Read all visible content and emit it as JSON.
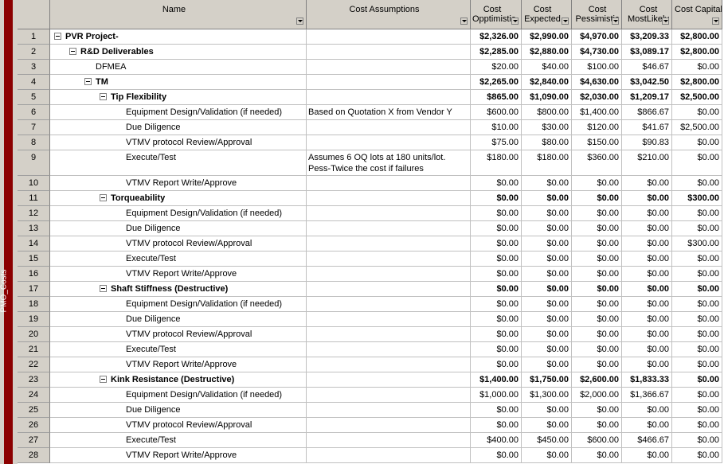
{
  "sidebar_label": "PMO_Costs",
  "columns": [
    "Name",
    "Cost Assumptions",
    "Cost Opptimistic",
    "Cost Expected",
    "Cost Pessimistic",
    "Cost MostLikely",
    "Cost Capital"
  ],
  "rows": [
    {
      "id": "1",
      "name": "PVR Project-",
      "costs": [
        "$2,326.00",
        "$2,990.00",
        "$4,970.00",
        "$3,209.33",
        "$2,800.00"
      ]
    },
    {
      "id": "2",
      "name": "R&D Deliverables",
      "costs": [
        "$2,285.00",
        "$2,880.00",
        "$4,730.00",
        "$3,089.17",
        "$2,800.00"
      ]
    },
    {
      "id": "3",
      "name": "DFMEA",
      "costs": [
        "$20.00",
        "$40.00",
        "$100.00",
        "$46.67",
        "$0.00"
      ]
    },
    {
      "id": "4",
      "name": "TM",
      "costs": [
        "$2,265.00",
        "$2,840.00",
        "$4,630.00",
        "$3,042.50",
        "$2,800.00"
      ]
    },
    {
      "id": "5",
      "name": "Tip Flexibility",
      "costs": [
        "$865.00",
        "$1,090.00",
        "$2,030.00",
        "$1,209.17",
        "$2,500.00"
      ]
    },
    {
      "id": "6",
      "name": "Equipment Design/Validation (if needed)",
      "assumption": "Based on Quotation X from Vendor Y",
      "costs": [
        "$600.00",
        "$800.00",
        "$1,400.00",
        "$866.67",
        "$0.00"
      ]
    },
    {
      "id": "7",
      "name": "Due Diligence",
      "costs": [
        "$10.00",
        "$30.00",
        "$120.00",
        "$41.67",
        "$2,500.00"
      ]
    },
    {
      "id": "8",
      "name": "VTMV protocol Review/Approval",
      "costs": [
        "$75.00",
        "$80.00",
        "$150.00",
        "$90.83",
        "$0.00"
      ]
    },
    {
      "id": "9",
      "name": "Execute/Test",
      "assumption": "Assumes 6 OQ lots at 180 units/lot. Pess-Twice the cost if failures",
      "costs": [
        "$180.00",
        "$180.00",
        "$360.00",
        "$210.00",
        "$0.00"
      ]
    },
    {
      "id": "10",
      "name": "VTMV Report Write/Approve",
      "costs": [
        "$0.00",
        "$0.00",
        "$0.00",
        "$0.00",
        "$0.00"
      ]
    },
    {
      "id": "11",
      "name": "Torqueability",
      "costs": [
        "$0.00",
        "$0.00",
        "$0.00",
        "$0.00",
        "$300.00"
      ]
    },
    {
      "id": "12",
      "name": "Equipment Design/Validation (if needed)",
      "costs": [
        "$0.00",
        "$0.00",
        "$0.00",
        "$0.00",
        "$0.00"
      ]
    },
    {
      "id": "13",
      "name": "Due Diligence",
      "costs": [
        "$0.00",
        "$0.00",
        "$0.00",
        "$0.00",
        "$0.00"
      ]
    },
    {
      "id": "14",
      "name": "VTMV protocol Review/Approval",
      "costs": [
        "$0.00",
        "$0.00",
        "$0.00",
        "$0.00",
        "$300.00"
      ]
    },
    {
      "id": "15",
      "name": "Execute/Test",
      "costs": [
        "$0.00",
        "$0.00",
        "$0.00",
        "$0.00",
        "$0.00"
      ]
    },
    {
      "id": "16",
      "name": "VTMV Report Write/Approve",
      "costs": [
        "$0.00",
        "$0.00",
        "$0.00",
        "$0.00",
        "$0.00"
      ]
    },
    {
      "id": "17",
      "name": "Shaft Stiffness (Destructive)",
      "costs": [
        "$0.00",
        "$0.00",
        "$0.00",
        "$0.00",
        "$0.00"
      ]
    },
    {
      "id": "18",
      "name": "Equipment Design/Validation (if needed)",
      "costs": [
        "$0.00",
        "$0.00",
        "$0.00",
        "$0.00",
        "$0.00"
      ]
    },
    {
      "id": "19",
      "name": "Due Diligence",
      "costs": [
        "$0.00",
        "$0.00",
        "$0.00",
        "$0.00",
        "$0.00"
      ]
    },
    {
      "id": "20",
      "name": "VTMV protocol Review/Approval",
      "costs": [
        "$0.00",
        "$0.00",
        "$0.00",
        "$0.00",
        "$0.00"
      ]
    },
    {
      "id": "21",
      "name": "Execute/Test",
      "costs": [
        "$0.00",
        "$0.00",
        "$0.00",
        "$0.00",
        "$0.00"
      ]
    },
    {
      "id": "22",
      "name": "VTMV Report Write/Approve",
      "costs": [
        "$0.00",
        "$0.00",
        "$0.00",
        "$0.00",
        "$0.00"
      ]
    },
    {
      "id": "23",
      "name": "Kink Resistance (Destructive)",
      "costs": [
        "$1,400.00",
        "$1,750.00",
        "$2,600.00",
        "$1,833.33",
        "$0.00"
      ]
    },
    {
      "id": "24",
      "name": "Equipment Design/Validation (if needed)",
      "costs": [
        "$1,000.00",
        "$1,300.00",
        "$2,000.00",
        "$1,366.67",
        "$0.00"
      ]
    },
    {
      "id": "25",
      "name": "Due Diligence",
      "costs": [
        "$0.00",
        "$0.00",
        "$0.00",
        "$0.00",
        "$0.00"
      ]
    },
    {
      "id": "26",
      "name": "VTMV protocol Review/Approval",
      "costs": [
        "$0.00",
        "$0.00",
        "$0.00",
        "$0.00",
        "$0.00"
      ]
    },
    {
      "id": "27",
      "name": "Execute/Test",
      "costs": [
        "$400.00",
        "$450.00",
        "$600.00",
        "$466.67",
        "$0.00"
      ]
    },
    {
      "id": "28",
      "name": "VTMV Report Write/Approve",
      "costs": [
        "$0.00",
        "$0.00",
        "$0.00",
        "$0.00",
        "$0.00"
      ]
    }
  ]
}
